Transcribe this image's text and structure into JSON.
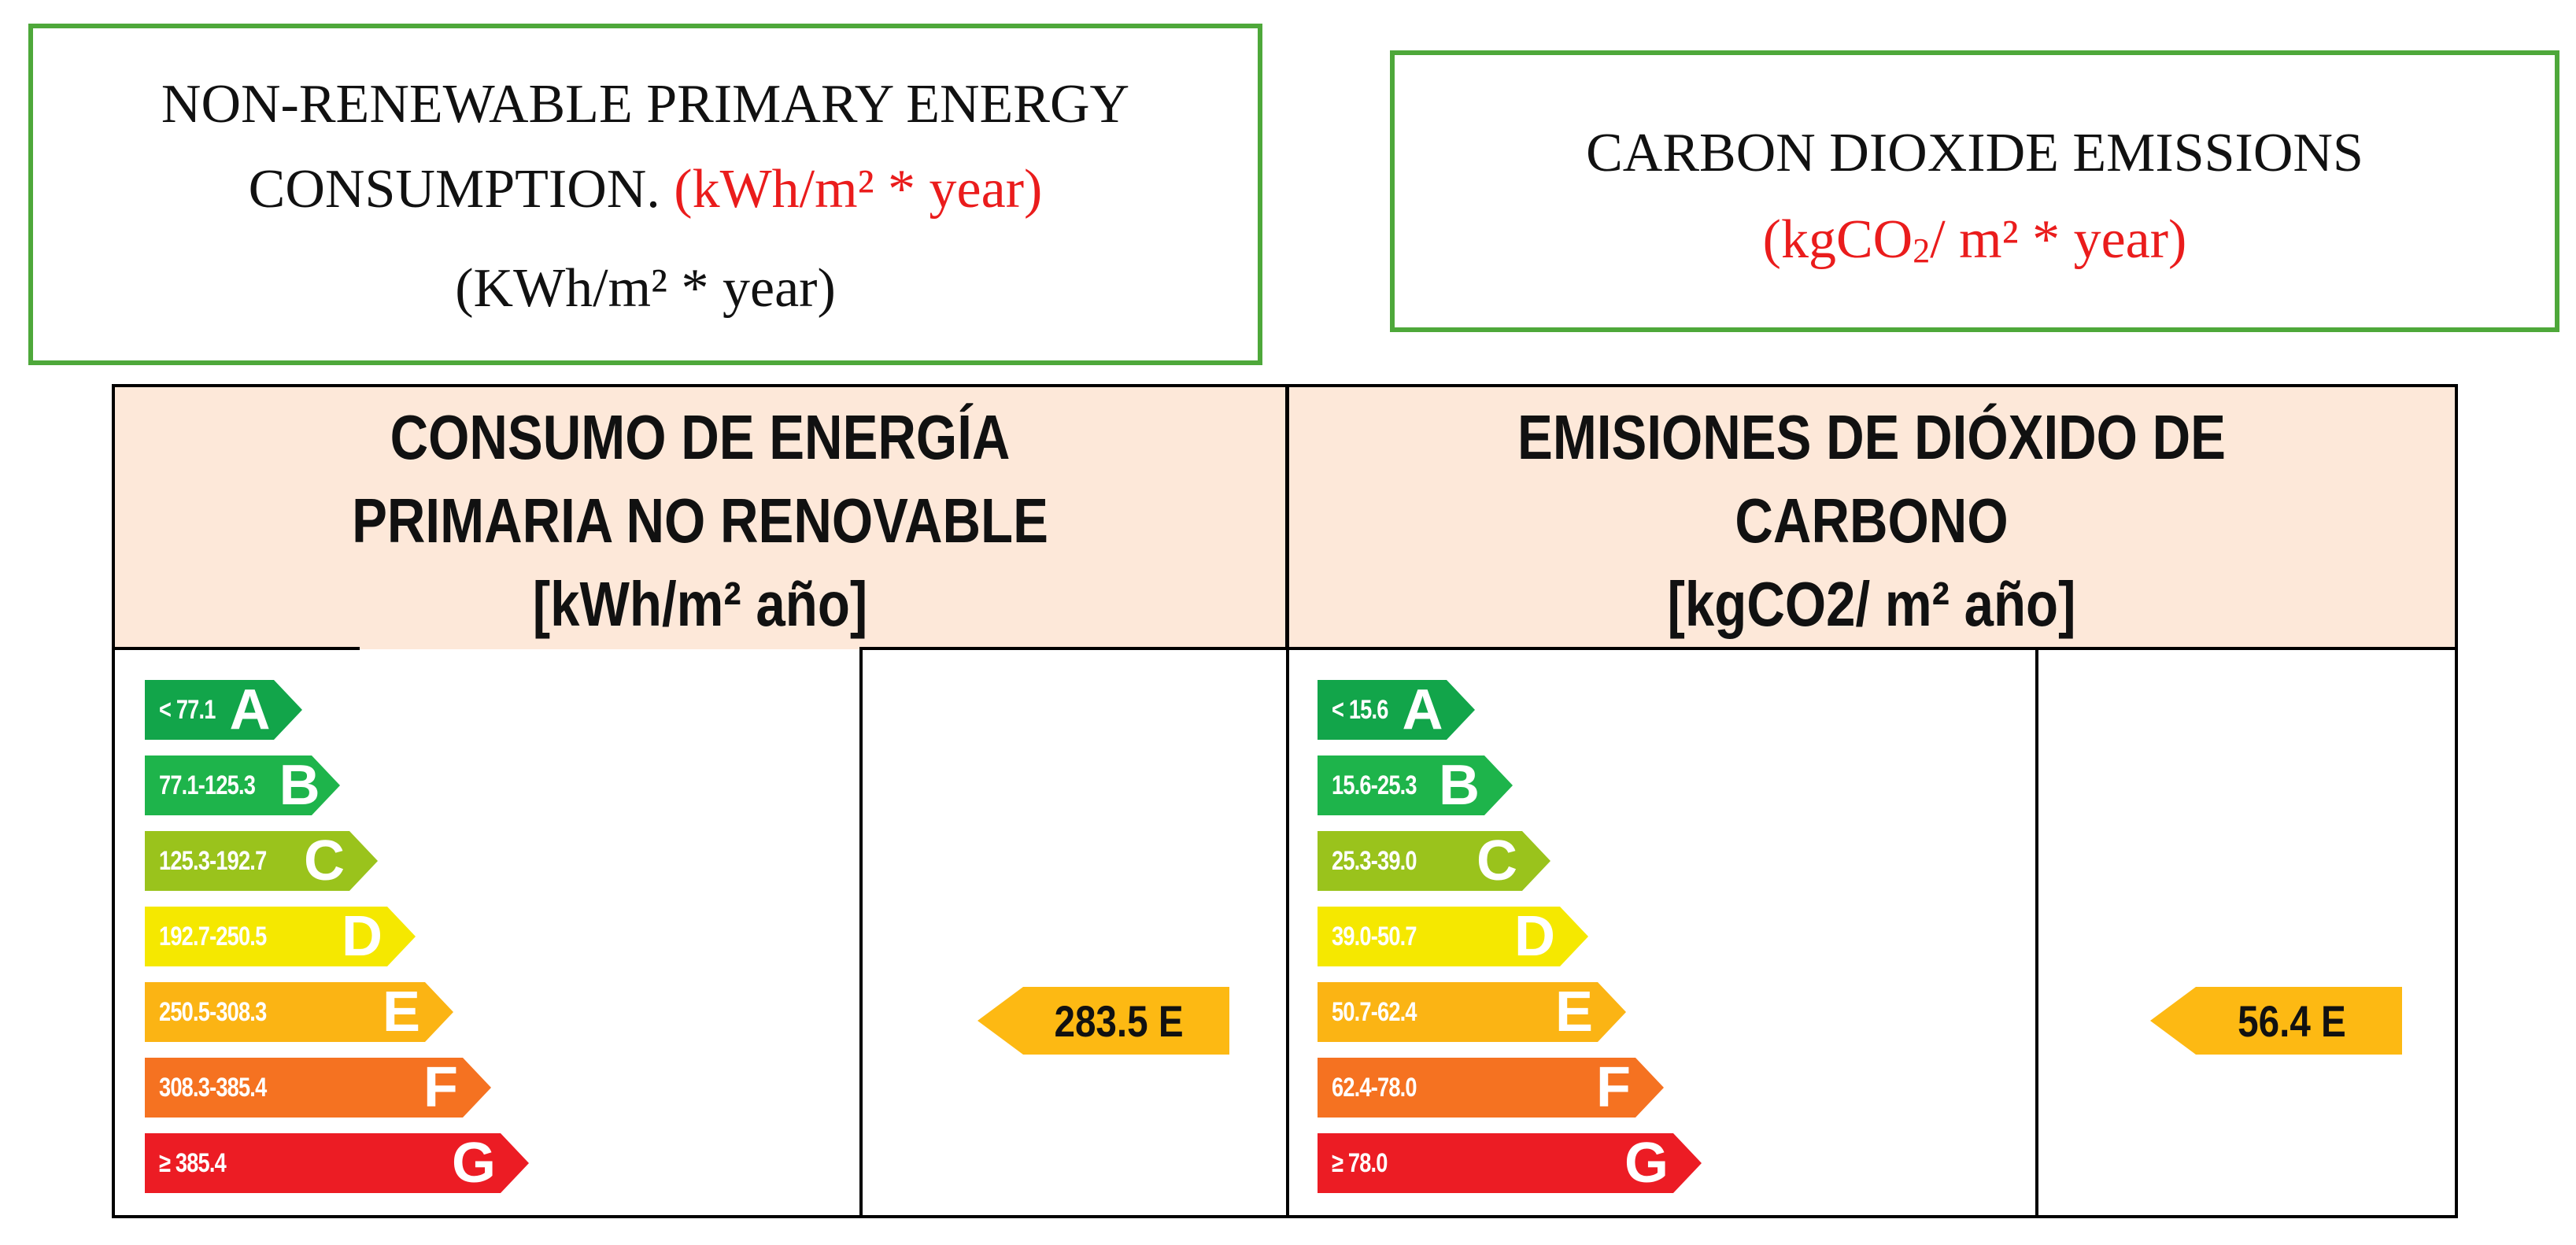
{
  "english_labels": {
    "energy": {
      "title_line1": "NON-RENEWABLE PRIMARY ENERGY",
      "title_line2_prefix": "CONSUMPTION.",
      "unit_red": "(kWh/m² * year)",
      "unit_black": "(KWh/m² * year)"
    },
    "emissions": {
      "title": "CARBON DIOXIDE EMISSIONS",
      "unit_red_part1": "(kgCO",
      "unit_red_sub": "2",
      "unit_red_part2": "/ m² * year)"
    }
  },
  "rating_table": {
    "energy": {
      "header": [
        "CONSUMO DE ENERGÍA",
        "PRIMARIA NO RENOVABLE",
        "[kWh/m² año]"
      ],
      "bands": [
        {
          "range": "< 77.1",
          "letter": "A",
          "color": "#12a54a"
        },
        {
          "range": "77.1-125.3",
          "letter": "B",
          "color": "#1eb44b"
        },
        {
          "range": "125.3-192.7",
          "letter": "C",
          "color": "#9ac31c"
        },
        {
          "range": "192.7-250.5",
          "letter": "D",
          "color": "#f5e800"
        },
        {
          "range": "250.5-308.3",
          "letter": "E",
          "color": "#fbb414"
        },
        {
          "range": "308.3-385.4",
          "letter": "F",
          "color": "#f57221"
        },
        {
          "range": "≥ 385.4",
          "letter": "G",
          "color": "#ec1c24"
        }
      ],
      "result": "283.5 E"
    },
    "emissions": {
      "header": [
        "EMISIONES DE DIÓXIDO DE",
        "CARBONO",
        "[kgCO2/ m² año]"
      ],
      "bands": [
        {
          "range": "< 15.6",
          "letter": "A",
          "color": "#12a54a"
        },
        {
          "range": "15.6-25.3",
          "letter": "B",
          "color": "#1eb44b"
        },
        {
          "range": "25.3-39.0",
          "letter": "C",
          "color": "#9ac31c"
        },
        {
          "range": "39.0-50.7",
          "letter": "D",
          "color": "#f5e800"
        },
        {
          "range": "50.7-62.4",
          "letter": "E",
          "color": "#fbb414"
        },
        {
          "range": "62.4-78.0",
          "letter": "F",
          "color": "#f57221"
        },
        {
          "range": "≥ 78.0",
          "letter": "G",
          "color": "#ec1c24"
        }
      ],
      "result": "56.4 E"
    }
  }
}
